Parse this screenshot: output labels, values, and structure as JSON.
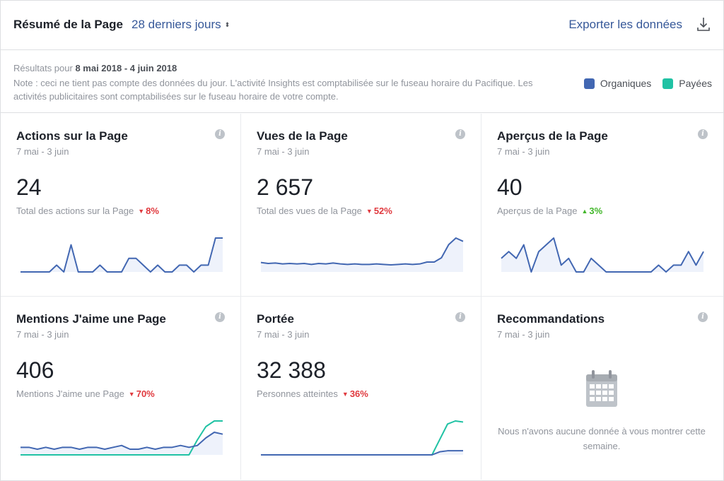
{
  "header": {
    "title": "Résumé de la Page",
    "range_label": "28 derniers jours",
    "range_caret": "⬍",
    "export_label": "Exporter les données"
  },
  "info": {
    "results_prefix": "Résultats pour ",
    "results_range": "8 mai 2018 - 4 juin 2018",
    "note": "Note : ceci ne tient pas compte des données du jour. L'activité Insights est comptabilisée sur le fuseau horaire du Pacifique. Les activités publicitaires sont comptabilisées sur le fuseau horaire de votre compte."
  },
  "legend": [
    {
      "label": "Organiques",
      "color": "#4267b2"
    },
    {
      "label": "Payées",
      "color": "#20c2a4"
    }
  ],
  "colors": {
    "organic": "#4267b2",
    "paid": "#20c2a4",
    "fill": "#eef2fb"
  },
  "cards": [
    {
      "title": "Actions sur la Page",
      "date": "7 mai - 3 juin",
      "value": "24",
      "subtitle": "Total des actions sur la Page",
      "change": "8%",
      "trend": "down",
      "organic": [
        0,
        0,
        0,
        0,
        0,
        1,
        0,
        4,
        0,
        0,
        0,
        1,
        0,
        0,
        0,
        2,
        2,
        1,
        0,
        1,
        0,
        0,
        1,
        1,
        0,
        1,
        1,
        5,
        5
      ],
      "paid": []
    },
    {
      "title": "Vues de la Page",
      "date": "7 mai - 3 juin",
      "value": "2 657",
      "subtitle": "Total des vues de la Page",
      "change": "52%",
      "trend": "down",
      "organic": [
        20,
        18,
        19,
        17,
        18,
        17,
        18,
        16,
        18,
        17,
        19,
        17,
        16,
        17,
        16,
        16,
        17,
        16,
        15,
        16,
        17,
        16,
        17,
        21,
        21,
        30,
        58,
        72,
        65
      ],
      "paid": []
    },
    {
      "title": "Aperçus de la Page",
      "date": "7 mai - 3 juin",
      "value": "40",
      "subtitle": "Aperçus de la Page",
      "change": "3%",
      "trend": "up",
      "organic": [
        2,
        3,
        2,
        4,
        0,
        3,
        4,
        5,
        1,
        2,
        0,
        0,
        2,
        1,
        0,
        0,
        0,
        0,
        0,
        0,
        0,
        1,
        0,
        1,
        1,
        3,
        1,
        3
      ],
      "paid": []
    },
    {
      "title": "Mentions J'aime une Page",
      "date": "7 mai - 3 juin",
      "value": "406",
      "subtitle": "Mentions J'aime une Page",
      "change": "70%",
      "trend": "down",
      "organic": [
        4,
        4,
        3,
        4,
        3,
        4,
        4,
        3,
        4,
        4,
        3,
        4,
        5,
        3,
        3,
        4,
        3,
        4,
        4,
        5,
        4,
        5,
        9,
        12,
        11
      ],
      "paid": [
        0,
        0,
        0,
        0,
        0,
        0,
        0,
        0,
        0,
        0,
        0,
        0,
        0,
        0,
        0,
        0,
        0,
        0,
        0,
        0,
        0,
        8,
        15,
        18,
        18
      ]
    },
    {
      "title": "Portée",
      "date": "7 mai - 3 juin",
      "value": "32 388",
      "subtitle": "Personnes atteintes",
      "change": "36%",
      "trend": "down",
      "organic": [
        0,
        0,
        0,
        0,
        0,
        0,
        0,
        0,
        0,
        0,
        0,
        0,
        0,
        0,
        0,
        0,
        0,
        0,
        0,
        0,
        0,
        0,
        0,
        3,
        4,
        4,
        4
      ],
      "paid": [
        0,
        0,
        0,
        0,
        0,
        0,
        0,
        0,
        0,
        0,
        0,
        0,
        0,
        0,
        0,
        0,
        0,
        0,
        0,
        0,
        0,
        0,
        0,
        15,
        30,
        33,
        32
      ]
    },
    {
      "title": "Recommandations",
      "date": "7 mai - 3 juin",
      "empty_message": "Nous n'avons aucune donnée à vous montrer cette semaine."
    }
  ]
}
